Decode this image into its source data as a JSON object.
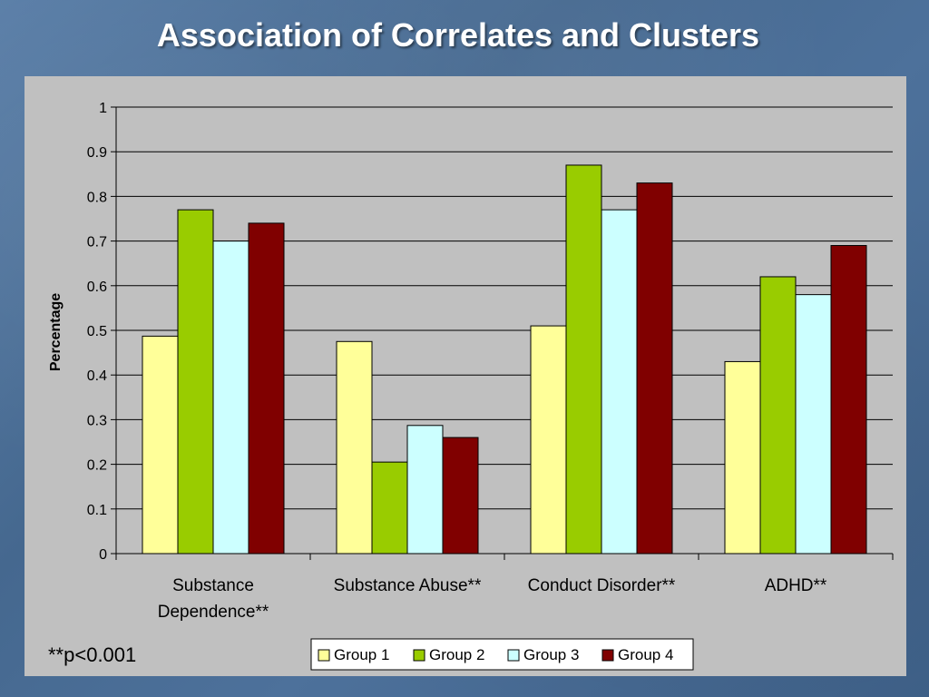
{
  "slide": {
    "title": "Association of Correlates and Clusters",
    "footnote": "**p<0.001"
  },
  "chart_data": {
    "type": "bar",
    "title": "",
    "xlabel": "",
    "ylabel": "Percentage",
    "ylim": [
      0,
      1
    ],
    "yticks": [
      "0",
      "0.1",
      "0.2",
      "0.3",
      "0.4",
      "0.5",
      "0.6",
      "0.7",
      "0.8",
      "0.9",
      "1"
    ],
    "grid": true,
    "legend_position": "bottom",
    "categories": [
      [
        "Substance",
        "Dependence**"
      ],
      [
        "Substance Abuse**"
      ],
      [
        "Conduct Disorder**"
      ],
      [
        "ADHD**"
      ]
    ],
    "series": [
      {
        "name": "Group 1",
        "color": "#ffff99",
        "values": [
          0.487,
          0.475,
          0.51,
          0.43
        ]
      },
      {
        "name": "Group 2",
        "color": "#99cc00",
        "values": [
          0.77,
          0.205,
          0.87,
          0.62
        ]
      },
      {
        "name": "Group 3",
        "color": "#ccffff",
        "values": [
          0.7,
          0.287,
          0.77,
          0.58
        ]
      },
      {
        "name": "Group 4",
        "color": "#800000",
        "values": [
          0.74,
          0.26,
          0.83,
          0.69
        ]
      }
    ]
  }
}
